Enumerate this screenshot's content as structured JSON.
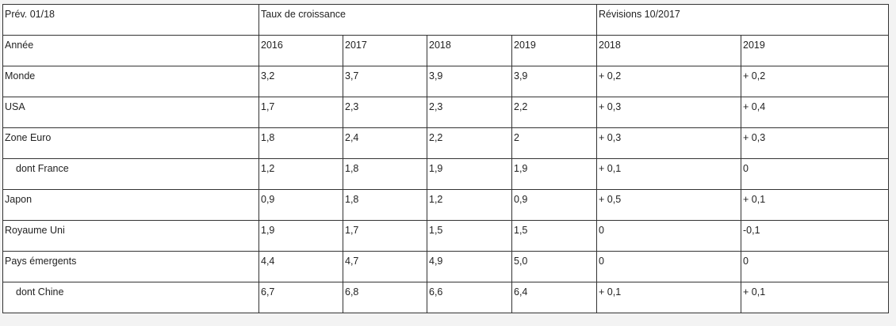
{
  "table": {
    "header1": {
      "corner": "Prév. 01/18",
      "group_growth": "Taux de croissance",
      "group_revisions": "Révisions 10/2017"
    },
    "header2": {
      "label": "Année",
      "years": [
        "2016",
        "2017",
        "2018",
        "2019",
        "2018",
        "2019"
      ]
    },
    "rows": [
      {
        "label": "Monde",
        "values": [
          "3,2",
          "3,7",
          "3,9",
          "3,9",
          "+ 0,2",
          "+ 0,2"
        ]
      },
      {
        "label": "USA",
        "values": [
          "1,7",
          "2,3",
          "2,3",
          "2,2",
          "+ 0,3",
          "+ 0,4"
        ]
      },
      {
        "label": "Zone Euro",
        "values": [
          "1,8",
          "2,4",
          "2,2",
          "2",
          "+ 0,3",
          "+ 0,3"
        ]
      },
      {
        "label": "dont France",
        "values": [
          "1,2",
          "1,8",
          "1,9",
          "1,9",
          "+ 0,1",
          "0"
        ]
      },
      {
        "label": "Japon",
        "values": [
          "0,9",
          "1,8",
          "1,2",
          "0,9",
          "+ 0,5",
          "+ 0,1"
        ]
      },
      {
        "label": "Royaume Uni",
        "values": [
          "1,9",
          "1,7",
          "1,5",
          "1,5",
          "0",
          "-0,1"
        ]
      },
      {
        "label": "Pays émergents",
        "values": [
          "4,4",
          "4,7",
          "4,9",
          "5,0",
          "0",
          "0"
        ]
      },
      {
        "label": "dont Chine",
        "values": [
          "6,7",
          "6,8",
          "6,6",
          "6,4",
          "+ 0,1",
          "+ 0,1"
        ]
      }
    ]
  }
}
